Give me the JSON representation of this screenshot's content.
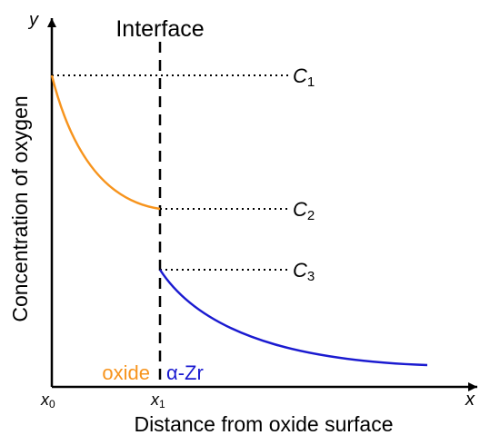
{
  "axes": {
    "y_symbol": "y",
    "x_symbol": "x",
    "y_label": "Concentration of oxygen",
    "x_label": "Distance from oxide surface"
  },
  "interface": {
    "label": "Interface"
  },
  "ticks": {
    "x0": {
      "base": "x",
      "sub": "0"
    },
    "x1": {
      "base": "x",
      "sub": "1"
    }
  },
  "levels": [
    {
      "base": "C",
      "sub": "1"
    },
    {
      "base": "C",
      "sub": "2"
    },
    {
      "base": "C",
      "sub": "3"
    }
  ],
  "regions": {
    "oxide": "oxide",
    "zr": "α-Zr"
  },
  "colors": {
    "oxide_curve": "#f7941d",
    "zr_curve": "#1a1ad0",
    "axis": "#000000"
  }
}
